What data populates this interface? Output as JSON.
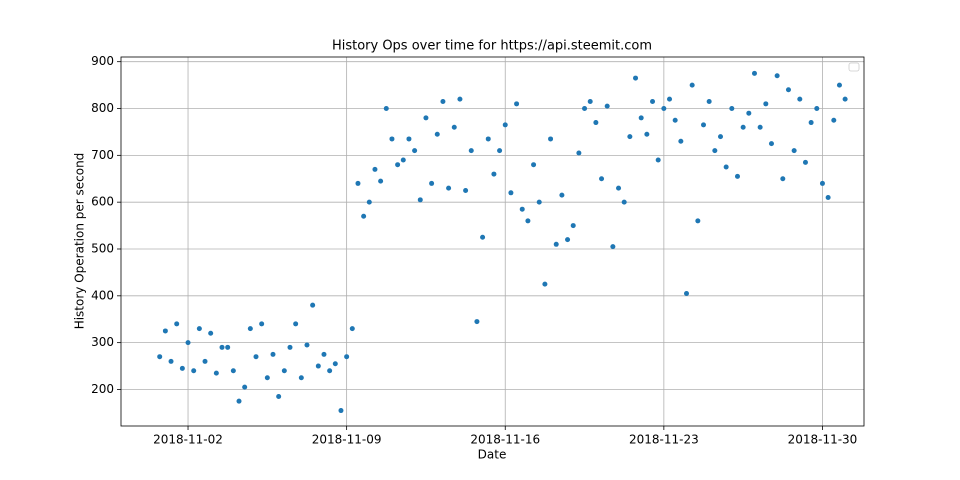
{
  "chart_data": {
    "type": "scatter",
    "title": "History Ops over time for https://api.steemit.com",
    "xlabel": "Date",
    "ylabel": "History Operation per second",
    "color": "#1f77b4",
    "grid": true,
    "xlim": [
      "2018-10-30 01:00",
      "2018-12-01 20:00"
    ],
    "xticks": [
      "2018-11-02",
      "2018-11-09",
      "2018-11-16",
      "2018-11-23",
      "2018-11-30"
    ],
    "ylim": [
      122,
      910
    ],
    "yticks": [
      200,
      300,
      400,
      500,
      600,
      700,
      800,
      900
    ],
    "x": [
      "2018-10-31 18:00",
      "2018-11-01 00:00",
      "2018-11-01 06:00",
      "2018-11-01 12:00",
      "2018-11-01 18:00",
      "2018-11-02 00:00",
      "2018-11-02 06:00",
      "2018-11-02 12:00",
      "2018-11-02 18:00",
      "2018-11-03 00:00",
      "2018-11-03 06:00",
      "2018-11-03 12:00",
      "2018-11-03 18:00",
      "2018-11-04 00:00",
      "2018-11-04 06:00",
      "2018-11-04 12:00",
      "2018-11-04 18:00",
      "2018-11-05 00:00",
      "2018-11-05 06:00",
      "2018-11-05 12:00",
      "2018-11-05 18:00",
      "2018-11-06 00:00",
      "2018-11-06 06:00",
      "2018-11-06 12:00",
      "2018-11-06 18:00",
      "2018-11-07 00:00",
      "2018-11-07 06:00",
      "2018-11-07 12:00",
      "2018-11-07 18:00",
      "2018-11-08 00:00",
      "2018-11-08 06:00",
      "2018-11-08 12:00",
      "2018-11-08 18:00",
      "2018-11-09 00:00",
      "2018-11-09 06:00",
      "2018-11-09 12:00",
      "2018-11-09 18:00",
      "2018-11-10 00:00",
      "2018-11-10 06:00",
      "2018-11-10 12:00",
      "2018-11-10 18:00",
      "2018-11-11 00:00",
      "2018-11-11 06:00",
      "2018-11-11 12:00",
      "2018-11-11 18:00",
      "2018-11-12 00:00",
      "2018-11-12 06:00",
      "2018-11-12 12:00",
      "2018-11-12 18:00",
      "2018-11-13 00:00",
      "2018-11-13 06:00",
      "2018-11-13 12:00",
      "2018-11-13 18:00",
      "2018-11-14 00:00",
      "2018-11-14 06:00",
      "2018-11-14 12:00",
      "2018-11-14 18:00",
      "2018-11-15 00:00",
      "2018-11-15 06:00",
      "2018-11-15 12:00",
      "2018-11-15 18:00",
      "2018-11-16 00:00",
      "2018-11-16 06:00",
      "2018-11-16 12:00",
      "2018-11-16 18:00",
      "2018-11-17 00:00",
      "2018-11-17 06:00",
      "2018-11-17 12:00",
      "2018-11-17 18:00",
      "2018-11-18 00:00",
      "2018-11-18 06:00",
      "2018-11-18 12:00",
      "2018-11-18 18:00",
      "2018-11-19 00:00",
      "2018-11-19 06:00",
      "2018-11-19 12:00",
      "2018-11-19 18:00",
      "2018-11-20 00:00",
      "2018-11-20 06:00",
      "2018-11-20 12:00",
      "2018-11-20 18:00",
      "2018-11-21 00:00",
      "2018-11-21 06:00",
      "2018-11-21 12:00",
      "2018-11-21 18:00",
      "2018-11-22 00:00",
      "2018-11-22 06:00",
      "2018-11-22 12:00",
      "2018-11-22 18:00",
      "2018-11-23 00:00",
      "2018-11-23 06:00",
      "2018-11-23 12:00",
      "2018-11-23 18:00",
      "2018-11-24 00:00",
      "2018-11-24 06:00",
      "2018-11-24 12:00",
      "2018-11-24 18:00",
      "2018-11-25 00:00",
      "2018-11-25 06:00",
      "2018-11-25 12:00",
      "2018-11-25 18:00",
      "2018-11-26 00:00",
      "2018-11-26 06:00",
      "2018-11-26 12:00",
      "2018-11-26 18:00",
      "2018-11-27 00:00",
      "2018-11-27 06:00",
      "2018-11-27 12:00",
      "2018-11-27 18:00",
      "2018-11-28 00:00",
      "2018-11-28 06:00",
      "2018-11-28 12:00",
      "2018-11-28 18:00",
      "2018-11-29 00:00",
      "2018-11-29 06:00",
      "2018-11-29 12:00",
      "2018-11-29 18:00",
      "2018-11-30 00:00",
      "2018-11-30 06:00",
      "2018-11-30 12:00",
      "2018-11-30 18:00",
      "2018-12-01 00:00"
    ],
    "values": [
      270,
      325,
      260,
      340,
      245,
      300,
      240,
      330,
      260,
      320,
      235,
      290,
      290,
      240,
      175,
      205,
      330,
      270,
      340,
      225,
      275,
      185,
      240,
      290,
      340,
      225,
      295,
      380,
      250,
      275,
      240,
      255,
      155,
      270,
      330,
      640,
      570,
      600,
      670,
      645,
      800,
      735,
      680,
      690,
      735,
      710,
      605,
      780,
      640,
      745,
      815,
      630,
      760,
      820,
      625,
      710,
      345,
      525,
      735,
      660,
      710,
      765,
      620,
      810,
      585,
      560,
      680,
      600,
      425,
      735,
      510,
      615,
      520,
      550,
      705,
      800,
      815,
      770,
      650,
      805,
      505,
      630,
      600,
      740,
      865,
      780,
      745,
      815,
      690,
      800,
      820,
      775,
      730,
      405,
      850,
      560,
      765,
      815,
      710,
      740,
      675,
      800,
      655,
      760,
      790,
      875,
      760,
      810,
      725,
      870,
      650,
      840,
      710,
      820,
      685,
      770,
      800,
      640,
      610,
      775,
      850,
      820
    ]
  }
}
